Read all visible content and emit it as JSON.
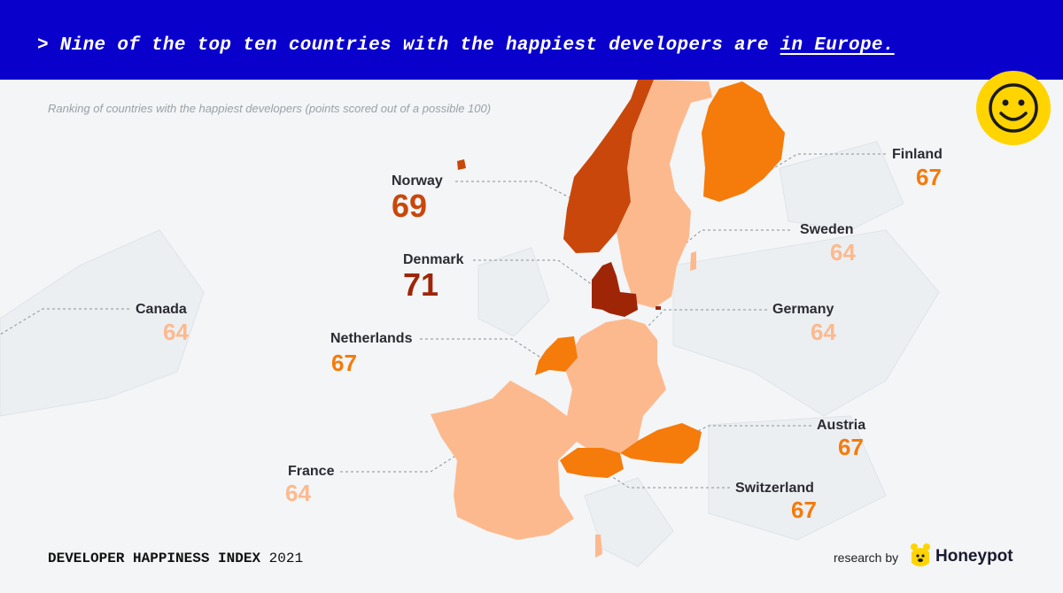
{
  "header": {
    "prefix": "> Nine of the top ten countries with the happiest developers are ",
    "link": "in Europe."
  },
  "subtitle": "Ranking of countries with the happiest developers (points scored out of a possible 100)",
  "countries": {
    "norway": {
      "name": "Norway",
      "score": "69",
      "color": "#c9470b"
    },
    "denmark": {
      "name": "Denmark",
      "score": "71",
      "color": "#9e2607"
    },
    "finland": {
      "name": "Finland",
      "score": "67",
      "color": "#f57b0a"
    },
    "sweden": {
      "name": "Sweden",
      "score": "64",
      "color": "#fdb98e"
    },
    "germany": {
      "name": "Germany",
      "score": "64",
      "color": "#fdb98e"
    },
    "canada": {
      "name": "Canada",
      "score": "64",
      "color": "#fdb98e"
    },
    "netherlands": {
      "name": "Netherlands",
      "score": "67",
      "color": "#f57b0a"
    },
    "austria": {
      "name": "Austria",
      "score": "67",
      "color": "#f57b0a"
    },
    "france": {
      "name": "France",
      "score": "64",
      "color": "#fdb98e"
    },
    "switzerland": {
      "name": "Switzerland",
      "score": "67",
      "color": "#f57b0a"
    }
  },
  "footer": {
    "title": "DEVELOPER HAPPINESS INDEX",
    "year": "2021",
    "research_by": "research by",
    "brand": "Honeypot"
  },
  "icons": {
    "badge": "smiley-face-icon",
    "brand": "honeypot-bear-icon"
  },
  "colors": {
    "header_bg": "#0a00cc",
    "badge": "#ffd400",
    "background": "#f3f5f7"
  }
}
